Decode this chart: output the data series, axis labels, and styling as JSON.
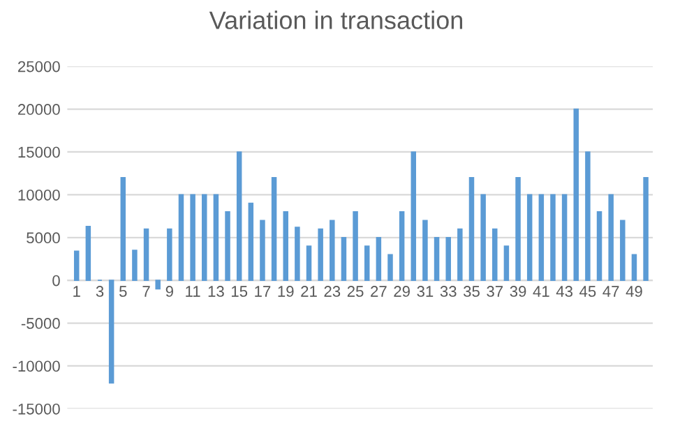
{
  "chart_data": {
    "type": "bar",
    "title": "Variation in transaction",
    "categories": [
      "1",
      null,
      "3",
      null,
      "5",
      null,
      "7",
      null,
      "9",
      null,
      "11",
      null,
      "13",
      null,
      "15",
      null,
      "17",
      null,
      "19",
      null,
      "21",
      null,
      "23",
      null,
      "25",
      null,
      "27",
      null,
      "29",
      null,
      "31",
      null,
      "33",
      null,
      "35",
      null,
      "37",
      null,
      "39",
      null,
      "41",
      null,
      "43",
      null,
      "45",
      null,
      "47",
      null,
      "49",
      null
    ],
    "values": [
      3400,
      6300,
      0,
      -12000,
      12000,
      3500,
      6000,
      -1000,
      6000,
      10000,
      10000,
      10000,
      10000,
      8000,
      15000,
      9000,
      7000,
      12000,
      8000,
      6200,
      4000,
      6000,
      7000,
      5000,
      8000,
      4000,
      5000,
      3000,
      8000,
      15000,
      7000,
      5000,
      5000,
      6000,
      12000,
      10000,
      6000,
      4000,
      12000,
      10000,
      10000,
      10000,
      10000,
      20000,
      15000,
      8000,
      10000,
      7000,
      3000,
      12000
    ],
    "color": "#5b9bd5",
    "ylim": [
      -15000,
      25000
    ],
    "yticks": [
      -15000,
      -10000,
      -5000,
      0,
      5000,
      10000,
      15000,
      20000,
      25000
    ],
    "grid": "y"
  }
}
